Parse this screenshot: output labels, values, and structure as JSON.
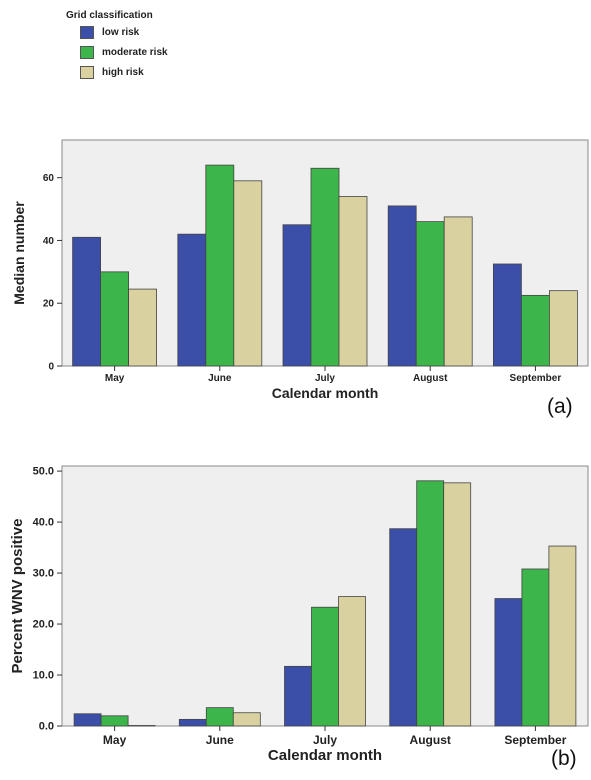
{
  "legend": {
    "title": "Grid classification",
    "items": [
      {
        "label": "low risk",
        "color": "#3b4fa8"
      },
      {
        "label": "moderate risk",
        "color": "#3cb54a"
      },
      {
        "label": "high risk",
        "color": "#d9d2a0"
      }
    ]
  },
  "chart_data": [
    {
      "type": "bar",
      "panel_label": "(a)",
      "categories": [
        "May",
        "June",
        "July",
        "August",
        "September"
      ],
      "series": [
        {
          "name": "low risk",
          "values": [
            41,
            42,
            45,
            51,
            32.5
          ]
        },
        {
          "name": "moderate risk",
          "values": [
            30,
            64,
            63,
            46,
            22.5
          ]
        },
        {
          "name": "high risk",
          "values": [
            24.5,
            59,
            54,
            47.5,
            24
          ]
        }
      ],
      "xlabel": "Calendar month",
      "ylabel": "Median number",
      "ylim": [
        0,
        72
      ],
      "yticks": [
        0,
        20,
        40,
        60
      ],
      "ytick_labels": [
        "0",
        "20",
        "40",
        "60"
      ],
      "grid": false
    },
    {
      "type": "bar",
      "panel_label": "(b)",
      "categories": [
        "May",
        "June",
        "July",
        "August",
        "September"
      ],
      "series": [
        {
          "name": "low risk",
          "values": [
            2.4,
            1.3,
            11.7,
            38.7,
            25.0
          ]
        },
        {
          "name": "moderate risk",
          "values": [
            2.0,
            3.6,
            23.3,
            48.1,
            30.8
          ]
        },
        {
          "name": "high risk",
          "values": [
            0.1,
            2.6,
            25.4,
            47.7,
            35.3
          ]
        }
      ],
      "xlabel": "Calendar month",
      "ylabel": "Percent WNV positive",
      "ylim": [
        0,
        51
      ],
      "yticks": [
        0,
        10,
        20,
        30,
        40,
        50
      ],
      "ytick_labels": [
        "0.0",
        "10.0",
        "20.0",
        "30.0",
        "40.0",
        "50.0"
      ],
      "grid": false
    }
  ]
}
